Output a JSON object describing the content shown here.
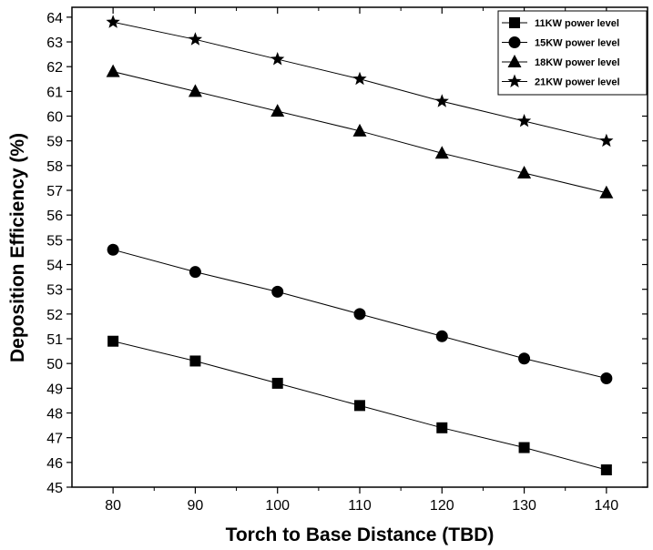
{
  "chart_data": {
    "type": "line",
    "xlabel": "Torch to Base Distance (TBD)",
    "ylabel": "Deposition Efficiency (%)",
    "x": [
      80,
      90,
      100,
      110,
      120,
      130,
      140
    ],
    "xlim": [
      75,
      145
    ],
    "ylim": [
      45,
      64.4
    ],
    "xticks": [
      80,
      90,
      100,
      110,
      120,
      130,
      140
    ],
    "yticks": [
      45,
      46,
      47,
      48,
      49,
      50,
      51,
      52,
      53,
      54,
      55,
      56,
      57,
      58,
      59,
      60,
      61,
      62,
      63,
      64
    ],
    "grid": false,
    "legend_position": "top-right",
    "series": [
      {
        "name": "11KW power level",
        "marker": "square",
        "values": [
          50.9,
          50.1,
          49.2,
          48.3,
          47.4,
          46.6,
          45.7
        ]
      },
      {
        "name": "15KW power level",
        "marker": "circle",
        "values": [
          54.6,
          53.7,
          52.9,
          52.0,
          51.1,
          50.2,
          49.4
        ]
      },
      {
        "name": "18KW power level",
        "marker": "triangle",
        "values": [
          61.8,
          61.0,
          60.2,
          59.4,
          58.5,
          57.7,
          56.9
        ]
      },
      {
        "name": "21KW power level",
        "marker": "star",
        "values": [
          63.8,
          63.1,
          62.3,
          61.5,
          60.6,
          59.8,
          59.0
        ]
      }
    ]
  }
}
